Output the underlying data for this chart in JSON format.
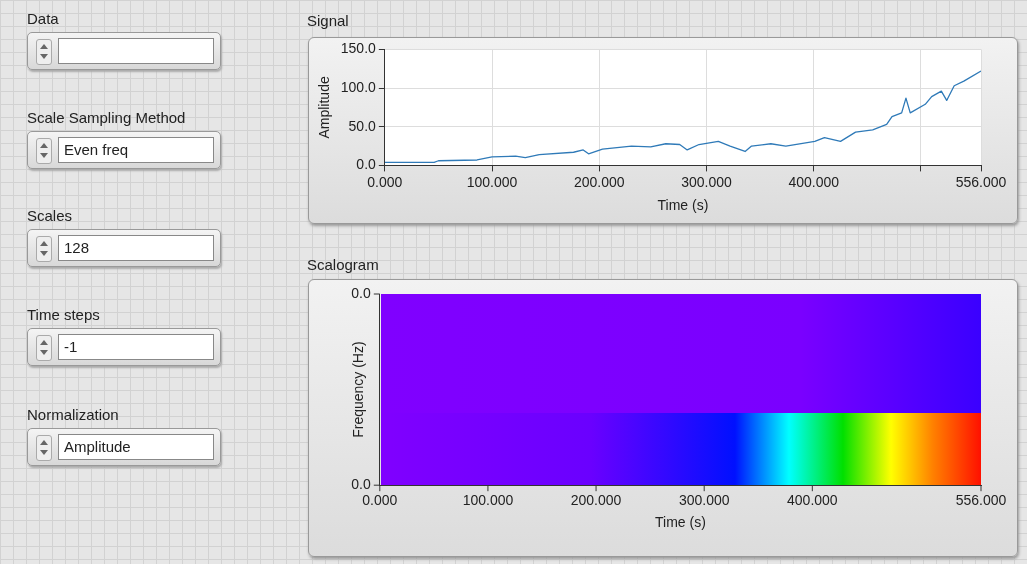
{
  "chart_data": [
    {
      "type": "other",
      "categories": [
        "Data",
        "Scale Sampling Method",
        "Scales",
        "Time steps",
        "Normalization"
      ],
      "value_labels": [
        null,
        "Even freq",
        "128",
        "-1",
        "Amplitude"
      ]
    },
    {
      "type": "line",
      "title": "Signal",
      "xlabel": "Time (s)",
      "ylabel": "Amplitude",
      "grid": true,
      "legend": false,
      "marker": "none",
      "xlim": [
        0,
        556
      ],
      "xticks": [
        {
          "value": 0,
          "label": "0.000"
        },
        {
          "value": 100,
          "label": "100.000"
        },
        {
          "value": 200,
          "label": "200.000"
        },
        {
          "value": 300,
          "label": "300.000"
        },
        {
          "value": 400,
          "label": "400.000"
        },
        {
          "value": 500,
          "label": null
        },
        {
          "value": 556,
          "label": "556.000"
        }
      ],
      "ylim": [
        0,
        150
      ],
      "yticks": [
        {
          "value": 0,
          "label": "0.0"
        },
        {
          "value": 50,
          "label": "50.0"
        },
        {
          "value": 100,
          "label": "100.0"
        },
        {
          "value": 150,
          "label": "150.0"
        }
      ],
      "x": [
        0,
        46,
        50,
        86,
        100,
        122,
        131,
        144,
        176,
        185,
        190,
        203,
        230,
        248,
        262,
        275,
        282,
        293,
        311,
        322,
        336,
        342,
        360,
        374,
        401,
        410,
        425,
        439,
        455,
        468,
        473,
        482,
        486,
        490,
        504,
        510,
        519,
        524,
        531,
        540,
        556
      ],
      "series": [
        {
          "color": "#2f7ab8",
          "values": [
            4,
            4,
            6,
            7,
            11,
            12,
            10,
            14,
            17,
            20,
            15,
            21,
            25,
            24,
            28,
            27,
            20,
            27,
            31,
            25,
            18,
            25,
            28,
            25,
            31,
            36,
            31,
            43,
            46,
            53,
            63,
            68,
            87,
            68,
            79,
            89,
            96,
            84,
            103,
            109,
            122
          ]
        }
      ]
    },
    {
      "type": "other",
      "title": "Scalogram",
      "xlabel": "Time (s)",
      "ylabel": "Frequency (Hz)",
      "annotations": [
        "0.000",
        "100.000",
        "200.000",
        "300.000",
        "400.000",
        "556.000",
        "0.0",
        "0.0"
      ]
    }
  ]
}
